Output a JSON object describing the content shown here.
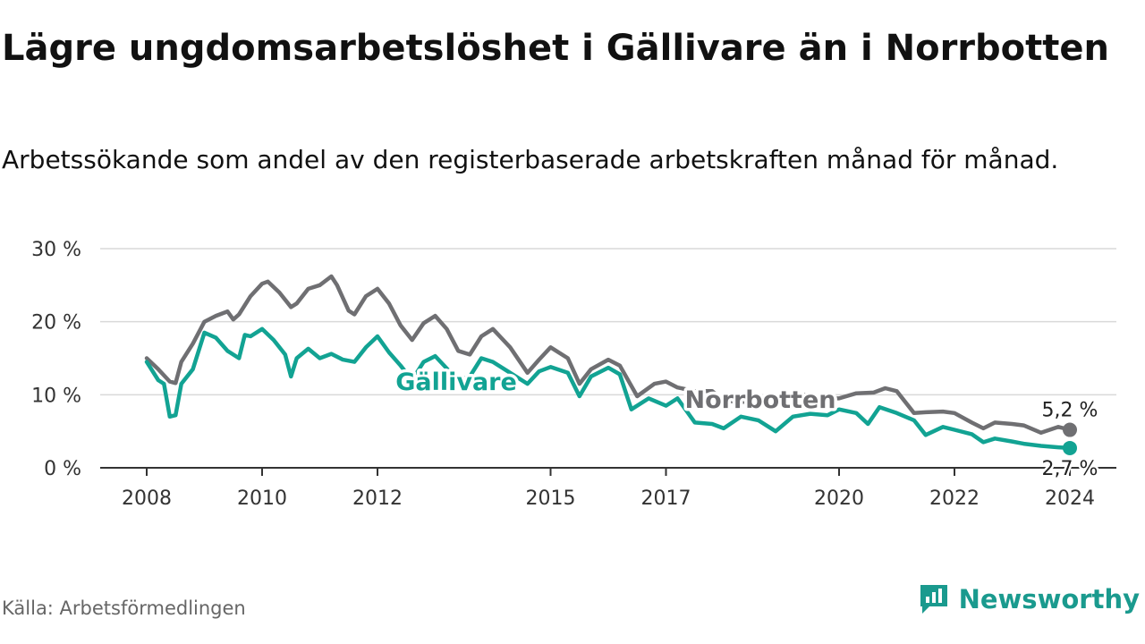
{
  "title": "Lägre ungdomsarbetslöshet i Gällivare än i Norrbotten",
  "subtitle": "Arbetssökande som andel av den registerbaserade arbetskraften månad för månad.",
  "source": "Källa: Arbetsförmedlingen",
  "brand": "Newsworthy",
  "colors": {
    "gallivare": "#12a393",
    "norrbotten": "#6f6f72",
    "grid": "#d9d9d9",
    "axis": "#333333",
    "brand": "#1a9a8e"
  },
  "chart_data": {
    "type": "line",
    "title": "Lägre ungdomsarbetslöshet i Gällivare än i Norrbotten",
    "xlabel": "",
    "ylabel": "",
    "ylim": [
      0,
      30
    ],
    "xlim": [
      2008,
      2024
    ],
    "yticks": [
      {
        "value": 0,
        "label": "0 %"
      },
      {
        "value": 10,
        "label": "10 %"
      },
      {
        "value": 20,
        "label": "20 %"
      },
      {
        "value": 30,
        "label": "30 %"
      }
    ],
    "xticks": [
      {
        "value": 2008,
        "label": "2008"
      },
      {
        "value": 2010,
        "label": "2010"
      },
      {
        "value": 2012,
        "label": "2012"
      },
      {
        "value": 2015,
        "label": "2015"
      },
      {
        "value": 2017,
        "label": "2017"
      },
      {
        "value": 2020,
        "label": "2020"
      },
      {
        "value": 2022,
        "label": "2022"
      },
      {
        "value": 2024,
        "label": "2024"
      }
    ],
    "grid": true,
    "series": [
      {
        "name": "Norrbotten",
        "color": "#6f6f72",
        "x": [
          2008.0,
          2008.2,
          2008.4,
          2008.5,
          2008.6,
          2008.8,
          2009.0,
          2009.2,
          2009.4,
          2009.5,
          2009.6,
          2009.8,
          2010.0,
          2010.1,
          2010.3,
          2010.5,
          2010.6,
          2010.8,
          2011.0,
          2011.2,
          2011.3,
          2011.5,
          2011.6,
          2011.8,
          2012.0,
          2012.2,
          2012.4,
          2012.6,
          2012.8,
          2013.0,
          2013.2,
          2013.4,
          2013.6,
          2013.8,
          2014.0,
          2014.3,
          2014.6,
          2014.8,
          2015.0,
          2015.3,
          2015.5,
          2015.7,
          2016.0,
          2016.2,
          2016.5,
          2016.8,
          2017.0,
          2017.2,
          2017.5,
          2017.8,
          2018.0,
          2018.3,
          2018.6,
          2018.9,
          2019.2,
          2019.5,
          2019.8,
          2020.0,
          2020.3,
          2020.6,
          2020.8,
          2021.0,
          2021.3,
          2021.5,
          2021.8,
          2022.0,
          2022.3,
          2022.5,
          2022.7,
          2023.0,
          2023.2,
          2023.5,
          2023.8,
          2024.0
        ],
        "values": [
          15.0,
          13.5,
          11.8,
          11.6,
          14.5,
          17.0,
          20.0,
          20.8,
          21.4,
          20.3,
          21.0,
          23.5,
          25.2,
          25.5,
          24.0,
          22.0,
          22.5,
          24.5,
          25.0,
          26.2,
          25.0,
          21.5,
          21.0,
          23.5,
          24.5,
          22.5,
          19.5,
          17.5,
          19.8,
          20.8,
          19.0,
          16.0,
          15.5,
          18.0,
          19.0,
          16.5,
          13.0,
          14.8,
          16.5,
          15.0,
          11.5,
          13.5,
          14.8,
          14.0,
          9.8,
          11.5,
          11.8,
          11.0,
          10.5,
          10.5,
          9.2,
          9.0,
          9.2,
          9.8,
          10.0,
          10.0,
          9.5,
          9.5,
          10.2,
          10.3,
          10.9,
          10.5,
          7.5,
          7.6,
          7.7,
          7.5,
          6.2,
          5.4,
          6.2,
          6.0,
          5.8,
          4.8,
          5.6,
          5.2
        ]
      },
      {
        "name": "Gällivare",
        "color": "#12a393",
        "x": [
          2008.0,
          2008.2,
          2008.3,
          2008.4,
          2008.5,
          2008.6,
          2008.8,
          2009.0,
          2009.2,
          2009.4,
          2009.6,
          2009.7,
          2009.8,
          2010.0,
          2010.2,
          2010.4,
          2010.5,
          2010.6,
          2010.8,
          2011.0,
          2011.2,
          2011.4,
          2011.6,
          2011.8,
          2012.0,
          2012.2,
          2012.4,
          2012.6,
          2012.8,
          2013.0,
          2013.2,
          2013.4,
          2013.6,
          2013.8,
          2014.0,
          2014.3,
          2014.6,
          2014.8,
          2015.0,
          2015.3,
          2015.5,
          2015.7,
          2016.0,
          2016.2,
          2016.4,
          2016.7,
          2017.0,
          2017.2,
          2017.5,
          2017.8,
          2018.0,
          2018.3,
          2018.6,
          2018.9,
          2019.2,
          2019.5,
          2019.8,
          2020.0,
          2020.3,
          2020.5,
          2020.7,
          2021.0,
          2021.3,
          2021.5,
          2021.8,
          2022.0,
          2022.3,
          2022.5,
          2022.7,
          2023.0,
          2023.2,
          2023.5,
          2023.8,
          2024.0
        ],
        "values": [
          14.5,
          12.0,
          11.5,
          7.0,
          7.2,
          11.5,
          13.5,
          18.5,
          17.8,
          16.0,
          15.0,
          18.2,
          18.0,
          19.0,
          17.5,
          15.5,
          12.5,
          15.0,
          16.3,
          15.0,
          15.6,
          14.8,
          14.5,
          16.5,
          18.0,
          15.8,
          14.0,
          12.0,
          14.5,
          15.3,
          13.6,
          12.0,
          12.5,
          15.0,
          14.5,
          13.0,
          11.5,
          13.2,
          13.8,
          13.0,
          9.8,
          12.5,
          13.7,
          12.8,
          8.0,
          9.5,
          8.5,
          9.5,
          6.2,
          6.0,
          5.4,
          7.0,
          6.5,
          5.0,
          7.0,
          7.4,
          7.2,
          8.0,
          7.5,
          6.0,
          8.3,
          7.5,
          6.5,
          4.5,
          5.6,
          5.2,
          4.6,
          3.5,
          4.0,
          3.6,
          3.3,
          3.0,
          2.8,
          2.7
        ]
      }
    ],
    "series_labels": [
      {
        "series": "Gällivare",
        "text": "Gällivare"
      },
      {
        "series": "Norrbotten",
        "text": "Norrbotten"
      }
    ],
    "end_labels": [
      {
        "series": "Norrbotten",
        "text": "5,2 %",
        "value": 5.2
      },
      {
        "series": "Gällivare",
        "text": "2,7 %",
        "value": 2.7
      }
    ]
  }
}
